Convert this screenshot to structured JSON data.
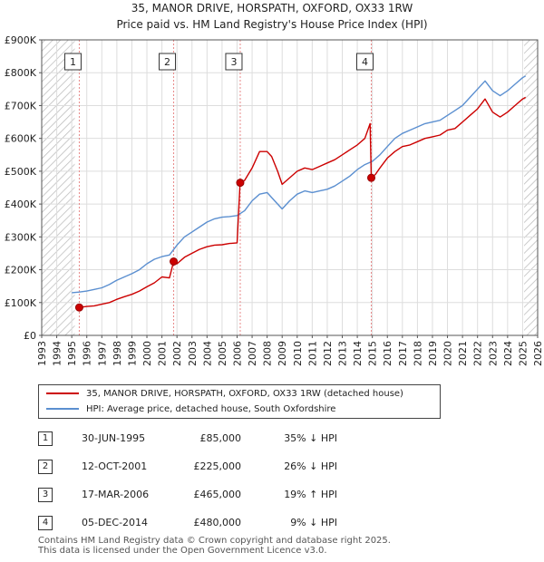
{
  "title_line1": "35, MANOR DRIVE, HORSPATH, OXFORD, OX33 1RW",
  "title_line2": "Price paid vs. HM Land Registry's House Price Index (HPI)",
  "chart_data": {
    "type": "line",
    "title": "35, MANOR DRIVE, HORSPATH, OXFORD, OX33 1RW — Price paid vs. HM Land Registry's House Price Index (HPI)",
    "xlabel": "",
    "ylabel": "",
    "xlim": [
      1993,
      2026
    ],
    "ylim": [
      0,
      900000
    ],
    "x_ticks": [
      1993,
      1994,
      1995,
      1996,
      1997,
      1998,
      1999,
      2000,
      2001,
      2002,
      2003,
      2004,
      2005,
      2006,
      2007,
      2008,
      2009,
      2010,
      2011,
      2012,
      2013,
      2014,
      2015,
      2016,
      2017,
      2018,
      2019,
      2020,
      2021,
      2022,
      2023,
      2024,
      2025,
      2026
    ],
    "y_ticks": [
      0,
      100000,
      200000,
      300000,
      400000,
      500000,
      600000,
      700000,
      800000,
      900000
    ],
    "y_tick_labels": [
      "£0",
      "£100K",
      "£200K",
      "£300K",
      "£400K",
      "£500K",
      "£600K",
      "£700K",
      "£800K",
      "£900K"
    ],
    "grid": true,
    "hatched_regions": [
      [
        1993,
        1995.2
      ],
      [
        2025.1,
        2026
      ]
    ],
    "series": [
      {
        "name": "35, MANOR DRIVE, HORSPATH, OXFORD, OX33 1RW (detached house)",
        "color": "#cc0000",
        "points": [
          [
            1995.5,
            85000
          ],
          [
            1996,
            88000
          ],
          [
            1996.5,
            90000
          ],
          [
            1997,
            95000
          ],
          [
            1997.5,
            100000
          ],
          [
            1998,
            110000
          ],
          [
            1998.5,
            118000
          ],
          [
            1999,
            125000
          ],
          [
            1999.5,
            135000
          ],
          [
            2000,
            148000
          ],
          [
            2000.5,
            160000
          ],
          [
            2001,
            178000
          ],
          [
            2001.5,
            175000
          ],
          [
            2001.78,
            225000
          ],
          [
            2002,
            218000
          ],
          [
            2002.5,
            238000
          ],
          [
            2003,
            250000
          ],
          [
            2003.5,
            262000
          ],
          [
            2004,
            270000
          ],
          [
            2004.5,
            275000
          ],
          [
            2005,
            276000
          ],
          [
            2005.5,
            280000
          ],
          [
            2006,
            282000
          ],
          [
            2006.2,
            465000
          ],
          [
            2006.5,
            472000
          ],
          [
            2007,
            510000
          ],
          [
            2007.5,
            560000
          ],
          [
            2008,
            560000
          ],
          [
            2008.3,
            545000
          ],
          [
            2008.7,
            500000
          ],
          [
            2009,
            460000
          ],
          [
            2009.5,
            480000
          ],
          [
            2010,
            500000
          ],
          [
            2010.5,
            510000
          ],
          [
            2011,
            505000
          ],
          [
            2011.5,
            515000
          ],
          [
            2012,
            525000
          ],
          [
            2012.5,
            535000
          ],
          [
            2013,
            550000
          ],
          [
            2013.5,
            565000
          ],
          [
            2014,
            580000
          ],
          [
            2014.5,
            600000
          ],
          [
            2014.85,
            645000
          ],
          [
            2014.93,
            480000
          ],
          [
            2015.2,
            490000
          ],
          [
            2015.5,
            510000
          ],
          [
            2016,
            540000
          ],
          [
            2016.5,
            560000
          ],
          [
            2017,
            575000
          ],
          [
            2017.5,
            580000
          ],
          [
            2018,
            590000
          ],
          [
            2018.5,
            600000
          ],
          [
            2019,
            605000
          ],
          [
            2019.5,
            610000
          ],
          [
            2020,
            625000
          ],
          [
            2020.5,
            630000
          ],
          [
            2021,
            650000
          ],
          [
            2021.5,
            670000
          ],
          [
            2022,
            690000
          ],
          [
            2022.5,
            720000
          ],
          [
            2023,
            680000
          ],
          [
            2023.5,
            665000
          ],
          [
            2024,
            680000
          ],
          [
            2024.5,
            700000
          ],
          [
            2025,
            720000
          ],
          [
            2025.2,
            725000
          ]
        ]
      },
      {
        "name": "HPI: Average price, detached house, South Oxfordshire",
        "color": "#5b8fd0",
        "points": [
          [
            1995,
            130000
          ],
          [
            1995.5,
            132000
          ],
          [
            1996,
            135000
          ],
          [
            1996.5,
            140000
          ],
          [
            1997,
            145000
          ],
          [
            1997.5,
            155000
          ],
          [
            1998,
            168000
          ],
          [
            1998.5,
            178000
          ],
          [
            1999,
            188000
          ],
          [
            1999.5,
            200000
          ],
          [
            2000,
            218000
          ],
          [
            2000.5,
            232000
          ],
          [
            2001,
            240000
          ],
          [
            2001.5,
            245000
          ],
          [
            2002,
            275000
          ],
          [
            2002.5,
            300000
          ],
          [
            2003,
            315000
          ],
          [
            2003.5,
            330000
          ],
          [
            2004,
            345000
          ],
          [
            2004.5,
            355000
          ],
          [
            2005,
            360000
          ],
          [
            2005.5,
            362000
          ],
          [
            2006,
            365000
          ],
          [
            2006.5,
            380000
          ],
          [
            2007,
            410000
          ],
          [
            2007.5,
            430000
          ],
          [
            2008,
            435000
          ],
          [
            2008.5,
            410000
          ],
          [
            2009,
            385000
          ],
          [
            2009.5,
            410000
          ],
          [
            2010,
            430000
          ],
          [
            2010.5,
            440000
          ],
          [
            2011,
            435000
          ],
          [
            2011.5,
            440000
          ],
          [
            2012,
            445000
          ],
          [
            2012.5,
            455000
          ],
          [
            2013,
            470000
          ],
          [
            2013.5,
            485000
          ],
          [
            2014,
            505000
          ],
          [
            2014.5,
            520000
          ],
          [
            2015,
            530000
          ],
          [
            2015.5,
            550000
          ],
          [
            2016,
            575000
          ],
          [
            2016.5,
            600000
          ],
          [
            2017,
            615000
          ],
          [
            2017.5,
            625000
          ],
          [
            2018,
            635000
          ],
          [
            2018.5,
            645000
          ],
          [
            2019,
            650000
          ],
          [
            2019.5,
            655000
          ],
          [
            2020,
            670000
          ],
          [
            2020.5,
            685000
          ],
          [
            2021,
            700000
          ],
          [
            2021.5,
            725000
          ],
          [
            2022,
            750000
          ],
          [
            2022.5,
            775000
          ],
          [
            2023,
            745000
          ],
          [
            2023.5,
            730000
          ],
          [
            2024,
            745000
          ],
          [
            2024.5,
            765000
          ],
          [
            2025,
            785000
          ],
          [
            2025.2,
            790000
          ]
        ]
      }
    ],
    "sales": [
      {
        "num": "1",
        "x": 1995.5,
        "y": 85000
      },
      {
        "num": "2",
        "x": 2001.78,
        "y": 225000
      },
      {
        "num": "3",
        "x": 2006.21,
        "y": 465000
      },
      {
        "num": "4",
        "x": 2014.93,
        "y": 480000
      }
    ]
  },
  "legend": {
    "property_label": "35, MANOR DRIVE, HORSPATH, OXFORD, OX33 1RW (detached house)",
    "hpi_label": "HPI: Average price, detached house, South Oxfordshire",
    "property_color": "#cc0000",
    "hpi_color": "#5b8fd0"
  },
  "transactions": [
    {
      "num": "1",
      "date": "30-JUN-1995",
      "price": "£85,000",
      "hpi": "35% ↓ HPI"
    },
    {
      "num": "2",
      "date": "12-OCT-2001",
      "price": "£225,000",
      "hpi": "26% ↓ HPI"
    },
    {
      "num": "3",
      "date": "17-MAR-2006",
      "price": "£465,000",
      "hpi": "19% ↑ HPI"
    },
    {
      "num": "4",
      "date": "05-DEC-2014",
      "price": "£480,000",
      "hpi": "9% ↓ HPI"
    }
  ],
  "footer_line1": "Contains HM Land Registry data © Crown copyright and database right 2025.",
  "footer_line2": "This data is licensed under the Open Government Licence v3.0."
}
